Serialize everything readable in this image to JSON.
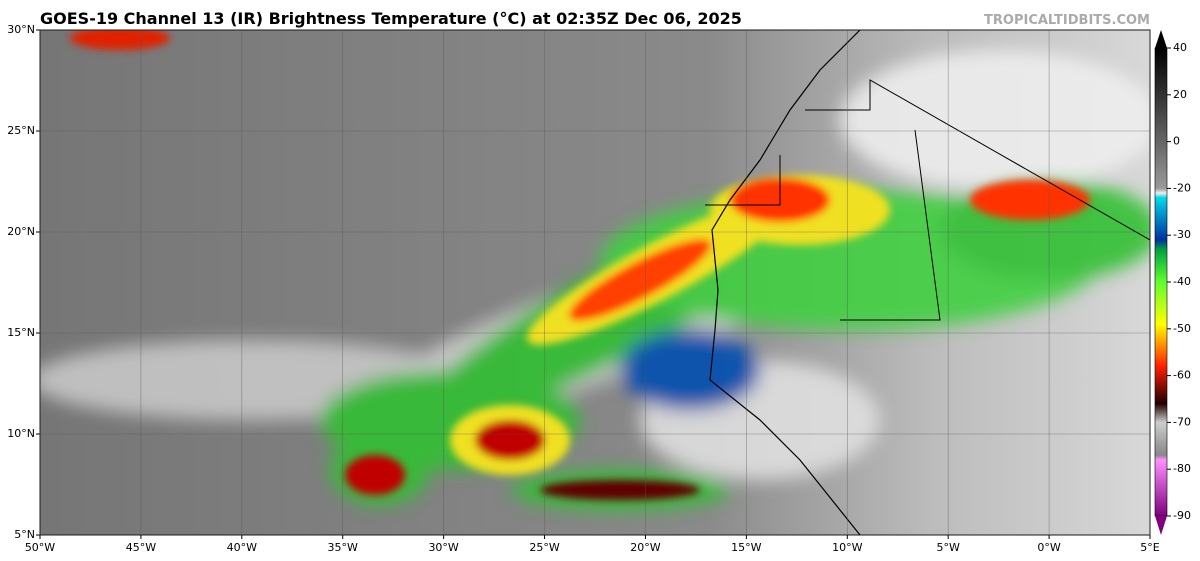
{
  "header": {
    "title": "GOES-19 Channel 13 (IR) Brightness Temperature (°C) at 02:35Z Dec 06, 2025",
    "watermark": "TROPICALTIDBITS.COM"
  },
  "map": {
    "lat_labels": [
      "30°N",
      "25°N",
      "20°N",
      "15°N",
      "10°N",
      "5°N"
    ],
    "lon_labels": [
      "50°W",
      "45°W",
      "40°W",
      "35°W",
      "30°W",
      "25°W",
      "20°W",
      "15°W",
      "10°W",
      "5°W",
      "0°W",
      "5°E"
    ]
  },
  "colorbar": {
    "ticks": [
      40,
      20,
      0,
      -20,
      -30,
      -40,
      -50,
      -60,
      -70,
      -80,
      -90
    ]
  }
}
